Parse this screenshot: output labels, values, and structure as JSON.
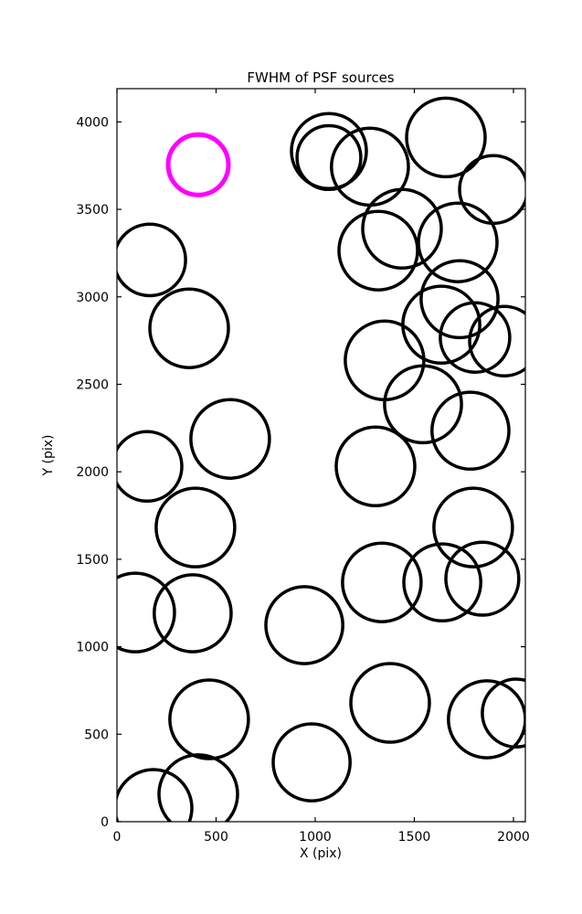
{
  "chart_data": {
    "type": "scatter",
    "title": "FWHM of PSF sources",
    "xlabel": "X (pix)",
    "ylabel": "Y (pix)",
    "xlim": [
      0,
      2060
    ],
    "ylim": [
      0,
      4190
    ],
    "xticks": [
      0,
      500,
      1000,
      1500,
      2000
    ],
    "yticks": [
      0,
      500,
      1000,
      1500,
      2000,
      2500,
      3000,
      3500,
      4000
    ],
    "grid": false,
    "legend_position": "none",
    "tick_direction": "in",
    "styles": {
      "source_color": "#000000",
      "highlight_color": "#FF00FF",
      "background_color": "#FFFFFF",
      "source_linewidth": 3.5,
      "highlight_linewidth": 5
    },
    "sources": [
      {
        "x": 1069,
        "y": 3833,
        "r": 189
      },
      {
        "x": 1069,
        "y": 3796,
        "r": 161
      },
      {
        "x": 1276,
        "y": 3744,
        "r": 194
      },
      {
        "x": 1659,
        "y": 3911,
        "r": 198
      },
      {
        "x": 1899,
        "y": 3614,
        "r": 171
      },
      {
        "x": 1438,
        "y": 3389,
        "r": 198
      },
      {
        "x": 1318,
        "y": 3264,
        "r": 198
      },
      {
        "x": 1719,
        "y": 3311,
        "r": 198
      },
      {
        "x": 1728,
        "y": 2987,
        "r": 194
      },
      {
        "x": 1954,
        "y": 2747,
        "r": 175
      },
      {
        "x": 1806,
        "y": 2768,
        "r": 175
      },
      {
        "x": 166,
        "y": 3211,
        "r": 180
      },
      {
        "x": 364,
        "y": 2820,
        "r": 198
      },
      {
        "x": 1350,
        "y": 2637,
        "r": 198
      },
      {
        "x": 1636,
        "y": 2841,
        "r": 194
      },
      {
        "x": 1544,
        "y": 2386,
        "r": 194
      },
      {
        "x": 1783,
        "y": 2235,
        "r": 194
      },
      {
        "x": 1304,
        "y": 2031,
        "r": 198
      },
      {
        "x": 571,
        "y": 2188,
        "r": 198
      },
      {
        "x": 152,
        "y": 2031,
        "r": 175
      },
      {
        "x": 396,
        "y": 1682,
        "r": 198
      },
      {
        "x": 92,
        "y": 1196,
        "r": 198
      },
      {
        "x": 382,
        "y": 1191,
        "r": 194
      },
      {
        "x": 945,
        "y": 1123,
        "r": 194
      },
      {
        "x": 1336,
        "y": 1368,
        "r": 198
      },
      {
        "x": 1641,
        "y": 1368,
        "r": 194
      },
      {
        "x": 1843,
        "y": 1389,
        "r": 184
      },
      {
        "x": 1797,
        "y": 1682,
        "r": 198
      },
      {
        "x": 465,
        "y": 585,
        "r": 198
      },
      {
        "x": 982,
        "y": 339,
        "r": 194
      },
      {
        "x": 1378,
        "y": 679,
        "r": 198
      },
      {
        "x": 1866,
        "y": 585,
        "r": 194
      },
      {
        "x": 2014,
        "y": 621,
        "r": 171
      },
      {
        "x": 184,
        "y": 78,
        "r": 194
      },
      {
        "x": 410,
        "y": 157,
        "r": 198
      }
    ],
    "highlighted_source": {
      "x": 410,
      "y": 3755,
      "r": 152
    }
  }
}
